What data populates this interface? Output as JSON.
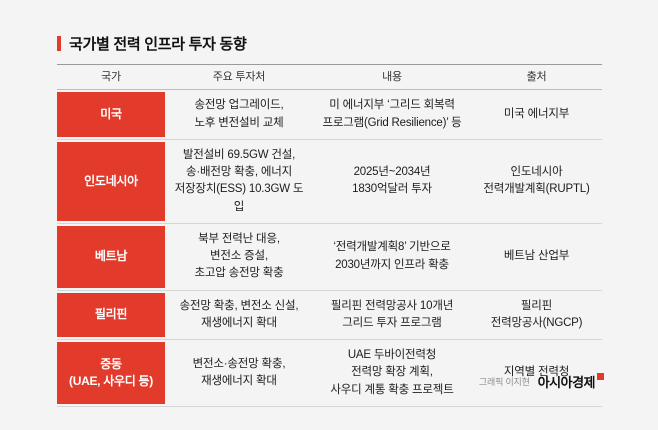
{
  "title": "국가별 전력 인프라 투자 동향",
  "credit": {
    "graphic_by": "그래픽 이지현",
    "brand": "아시아경제"
  },
  "colors": {
    "accent_red": "#e23b2c",
    "background": "#f4f4f5",
    "row_line": "#d6d6d6"
  },
  "chart_data": {
    "type": "table",
    "title": "국가별 전력 인프라 투자 동향",
    "columns": [
      "국가",
      "주요 투자처",
      "내용",
      "출처"
    ],
    "rows": [
      [
        "미국",
        "송전망 업그레이드,\n노후 변전설비 교체",
        "미 에너지부 ‘그리드 회복력\n프로그램(Grid Resilience)’ 등",
        "미국 에너지부"
      ],
      [
        "인도네시아",
        "발전설비 69.5GW 건설,\n송·배전망 확충, 에너지\n저장장치(ESS) 10.3GW 도입",
        "2025년~2034년\n1830억달러 투자",
        "인도네시아\n전력개발계획(RUPTL)"
      ],
      [
        "베트남",
        "북부 전력난 대응,\n변전소 증설,\n초고압 송전망 확충",
        "‘전력개발계획8’ 기반으로\n2030년까지 인프라 확충",
        "베트남 산업부"
      ],
      [
        "필리핀",
        "송전망 확충, 변전소 신설,\n재생에너지 확대",
        "필리핀 전력망공사 10개년\n그리드 투자 프로그램",
        "필리핀\n전력망공사(NGCP)"
      ],
      [
        "중동\n(UAE, 사우디 등)",
        "변전소·송전망 확충,\n재생에너지 확대",
        "UAE 두바이전력청\n전력망 확장 계획,\n사우디 계통 확충 프로젝트",
        "지역별 전력청"
      ]
    ]
  }
}
